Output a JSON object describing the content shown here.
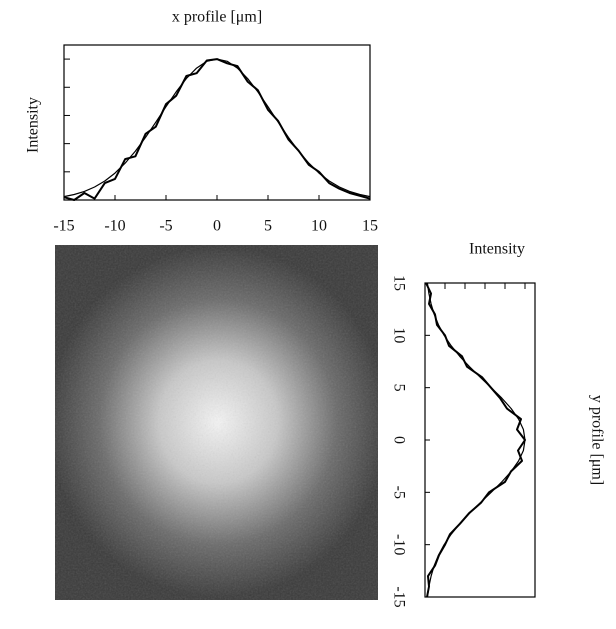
{
  "chart_data": [
    {
      "type": "line",
      "title": "x profile [μm]",
      "ylabel": "Intensity",
      "x": [
        -15,
        -14,
        -13,
        -12,
        -11,
        -10,
        -9,
        -8,
        -7,
        -6,
        -5,
        -4,
        -3,
        -2,
        -1,
        0,
        1,
        2,
        3,
        4,
        5,
        6,
        7,
        8,
        9,
        10,
        11,
        12,
        13,
        14,
        15
      ],
      "xlim": [
        -15,
        15
      ],
      "xticks": [
        -15,
        -10,
        -5,
        0,
        5,
        10,
        15
      ],
      "ylim": [
        0,
        1.1
      ],
      "yticks": [
        0,
        0.2,
        0.4,
        0.6,
        0.8,
        1.0
      ],
      "series": [
        {
          "color": "#000000",
          "values": [
            0.02,
            0.0,
            0.05,
            0.01,
            0.12,
            0.15,
            0.29,
            0.31,
            0.47,
            0.52,
            0.68,
            0.74,
            0.88,
            0.9,
            0.99,
            1.0,
            0.97,
            0.95,
            0.84,
            0.78,
            0.64,
            0.56,
            0.43,
            0.35,
            0.25,
            0.2,
            0.12,
            0.08,
            0.05,
            0.03,
            0.01
          ]
        },
        {
          "color": "#000000",
          "values": [
            0.024,
            0.039,
            0.061,
            0.092,
            0.135,
            0.191,
            0.262,
            0.347,
            0.445,
            0.552,
            0.662,
            0.768,
            0.862,
            0.936,
            0.984,
            1.0,
            0.984,
            0.936,
            0.862,
            0.768,
            0.662,
            0.552,
            0.445,
            0.347,
            0.262,
            0.191,
            0.135,
            0.092,
            0.061,
            0.039,
            0.024
          ]
        }
      ]
    },
    {
      "type": "line-vertical",
      "title": "Intensity",
      "ylabel": "y profile [μm]",
      "y": [
        -15,
        -14,
        -13,
        -12,
        -11,
        -10,
        -9,
        -8,
        -7,
        -6,
        -5,
        -4,
        -3,
        -2,
        -1,
        0,
        1,
        2,
        3,
        4,
        5,
        6,
        7,
        8,
        9,
        10,
        11,
        12,
        13,
        14,
        15
      ],
      "ylim": [
        -15,
        15
      ],
      "yticks": [
        15,
        10,
        5,
        0,
        -5,
        -10,
        -15
      ],
      "xlim": [
        0,
        1.1
      ],
      "xticks": [
        0,
        0.2,
        0.4,
        0.6,
        0.8,
        1.0
      ],
      "series": [
        {
          "color": "#000000",
          "values": [
            0.02,
            0.04,
            0.03,
            0.1,
            0.14,
            0.2,
            0.25,
            0.35,
            0.44,
            0.56,
            0.64,
            0.8,
            0.86,
            0.97,
            0.93,
            1.0,
            0.92,
            0.96,
            0.82,
            0.75,
            0.66,
            0.57,
            0.42,
            0.37,
            0.24,
            0.2,
            0.12,
            0.1,
            0.04,
            0.06,
            0.01
          ]
        },
        {
          "color": "#000000",
          "values": [
            0.024,
            0.039,
            0.061,
            0.092,
            0.135,
            0.191,
            0.262,
            0.347,
            0.445,
            0.552,
            0.662,
            0.768,
            0.862,
            0.936,
            0.984,
            1.0,
            0.984,
            0.936,
            0.862,
            0.768,
            0.662,
            0.552,
            0.445,
            0.347,
            0.262,
            0.191,
            0.135,
            0.092,
            0.061,
            0.039,
            0.024
          ]
        }
      ]
    }
  ]
}
